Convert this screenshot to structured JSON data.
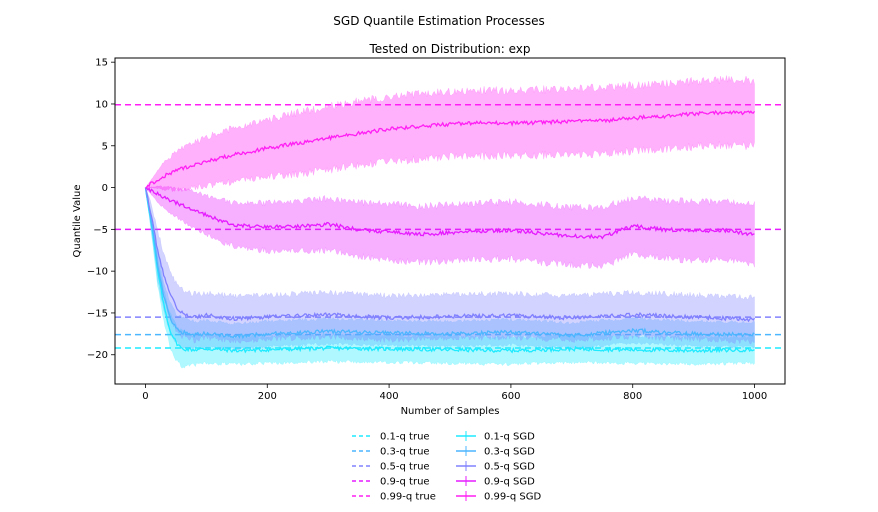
{
  "chart_data": {
    "type": "line",
    "title": "SGD Quantile Estimation Processes",
    "subtitle": "Tested on Distribution: exp",
    "xlabel": "Number of Samples",
    "ylabel": "Quantile Value",
    "xlim": [
      -50,
      1050
    ],
    "ylim": [
      -23.5,
      15.5
    ],
    "xticks": [
      0,
      200,
      400,
      600,
      800,
      1000
    ],
    "yticks": [
      -20,
      -15,
      -10,
      -5,
      0,
      5,
      10,
      15
    ],
    "grid": false,
    "legend_placement": "bottom-center",
    "legend": {
      "true_entries": [
        "0.1-q true",
        "0.3-q true",
        "0.5-q true",
        "0.9-q true",
        "0.99-q true"
      ],
      "sgd_entries": [
        "0.1-q SGD",
        "0.3-q SGD",
        "0.5-q SGD",
        "0.9-q SGD",
        "0.99-q SGD"
      ]
    },
    "series": [
      {
        "name": "0.1-q SGD",
        "color": "#1eeaff",
        "true_value": -19.2,
        "x": [
          0,
          10,
          20,
          30,
          40,
          50,
          60,
          80,
          100,
          150,
          200,
          300,
          400,
          500,
          600,
          700,
          800,
          900,
          1000
        ],
        "values": [
          0,
          -4.5,
          -10,
          -14,
          -17,
          -18.5,
          -19.3,
          -19.4,
          -19.3,
          -19.5,
          -19.4,
          -19.2,
          -19.3,
          -19.4,
          -19.5,
          -19.3,
          -19.4,
          -19.5,
          -19.4
        ],
        "band": [
          0,
          1,
          1.5,
          1.7,
          1.8,
          1.8,
          1.8,
          1.6,
          1.5,
          1.4,
          1.4,
          1.4,
          1.4,
          1.4,
          1.4,
          1.4,
          1.4,
          1.4,
          1.4
        ]
      },
      {
        "name": "0.3-q SGD",
        "color": "#4cb6ff",
        "true_value": -17.6,
        "x": [
          0,
          10,
          20,
          30,
          40,
          50,
          60,
          80,
          100,
          150,
          200,
          300,
          400,
          500,
          600,
          700,
          800,
          900,
          1000
        ],
        "values": [
          0,
          -4.2,
          -9.3,
          -13,
          -15.5,
          -16.8,
          -17.3,
          -17.6,
          -17.5,
          -17.8,
          -17.5,
          -17.2,
          -17.4,
          -17.5,
          -17.3,
          -17.7,
          -17.1,
          -17.5,
          -17.6
        ],
        "band": [
          0,
          1,
          1.5,
          1.6,
          1.6,
          1.5,
          1.5,
          1.4,
          1.4,
          1.3,
          1.3,
          1.3,
          1.3,
          1.3,
          1.3,
          1.3,
          1.3,
          1.3,
          1.3
        ]
      },
      {
        "name": "0.5-q SGD",
        "color": "#8080ff",
        "true_value": -15.5,
        "x": [
          0,
          10,
          20,
          30,
          40,
          50,
          60,
          80,
          100,
          150,
          200,
          300,
          400,
          500,
          600,
          700,
          800,
          900,
          1000
        ],
        "values": [
          0,
          -3.5,
          -7.5,
          -10.5,
          -12.8,
          -14.2,
          -15,
          -15.5,
          -15.3,
          -15.7,
          -15.5,
          -15.2,
          -15.6,
          -15.4,
          -15.3,
          -15.6,
          -15.2,
          -15.5,
          -15.8
        ],
        "band": [
          0,
          1.3,
          2,
          2.3,
          2.4,
          2.4,
          2.4,
          2.4,
          2.3,
          2.3,
          2.3,
          2.3,
          2.3,
          2.3,
          2.3,
          2.3,
          2.3,
          2.3,
          2.3
        ]
      },
      {
        "name": "0.9-q SGD",
        "color": "#e61cff",
        "true_value": -5.0,
        "x": [
          0,
          25,
          50,
          75,
          100,
          125,
          150,
          200,
          250,
          300,
          350,
          400,
          450,
          500,
          550,
          600,
          650,
          700,
          750,
          800,
          850,
          900,
          950,
          1000
        ],
        "values": [
          0,
          -1,
          -1.8,
          -2.5,
          -3.3,
          -4,
          -4.5,
          -4.7,
          -4.6,
          -4.4,
          -5,
          -5.3,
          -5.6,
          -5.4,
          -5.2,
          -5.1,
          -5.5,
          -5.8,
          -5.9,
          -4.6,
          -5,
          -5.2,
          -5.1,
          -5.6
        ],
        "band": [
          0,
          1,
          1.5,
          1.8,
          2,
          2.2,
          2.3,
          2.5,
          2.6,
          2.7,
          2.8,
          2.9,
          2.9,
          2.9,
          2.9,
          3,
          3,
          3,
          3,
          3,
          3,
          3,
          3,
          3.1
        ]
      },
      {
        "name": "0.99-q SGD",
        "color": "#ff1ff4",
        "true_value": 9.9,
        "x": [
          0,
          25,
          50,
          75,
          100,
          125,
          150,
          200,
          250,
          300,
          350,
          400,
          450,
          500,
          550,
          600,
          650,
          700,
          750,
          800,
          850,
          900,
          950,
          1000
        ],
        "values": [
          0,
          1.2,
          2,
          2.6,
          3.1,
          3.6,
          4,
          4.7,
          5.3,
          5.9,
          6.5,
          7,
          7.3,
          7.6,
          7.7,
          7.7,
          7.8,
          7.9,
          8,
          8.3,
          8.5,
          8.8,
          9,
          8.9
        ],
        "band": [
          0,
          1.2,
          2,
          2.3,
          2.5,
          2.7,
          2.8,
          3,
          3.2,
          3.3,
          3.3,
          3.4,
          3.4,
          3.4,
          3.4,
          3.4,
          3.4,
          3.4,
          3.4,
          3.4,
          3.4,
          3.4,
          3.4,
          3.4
        ]
      }
    ]
  }
}
